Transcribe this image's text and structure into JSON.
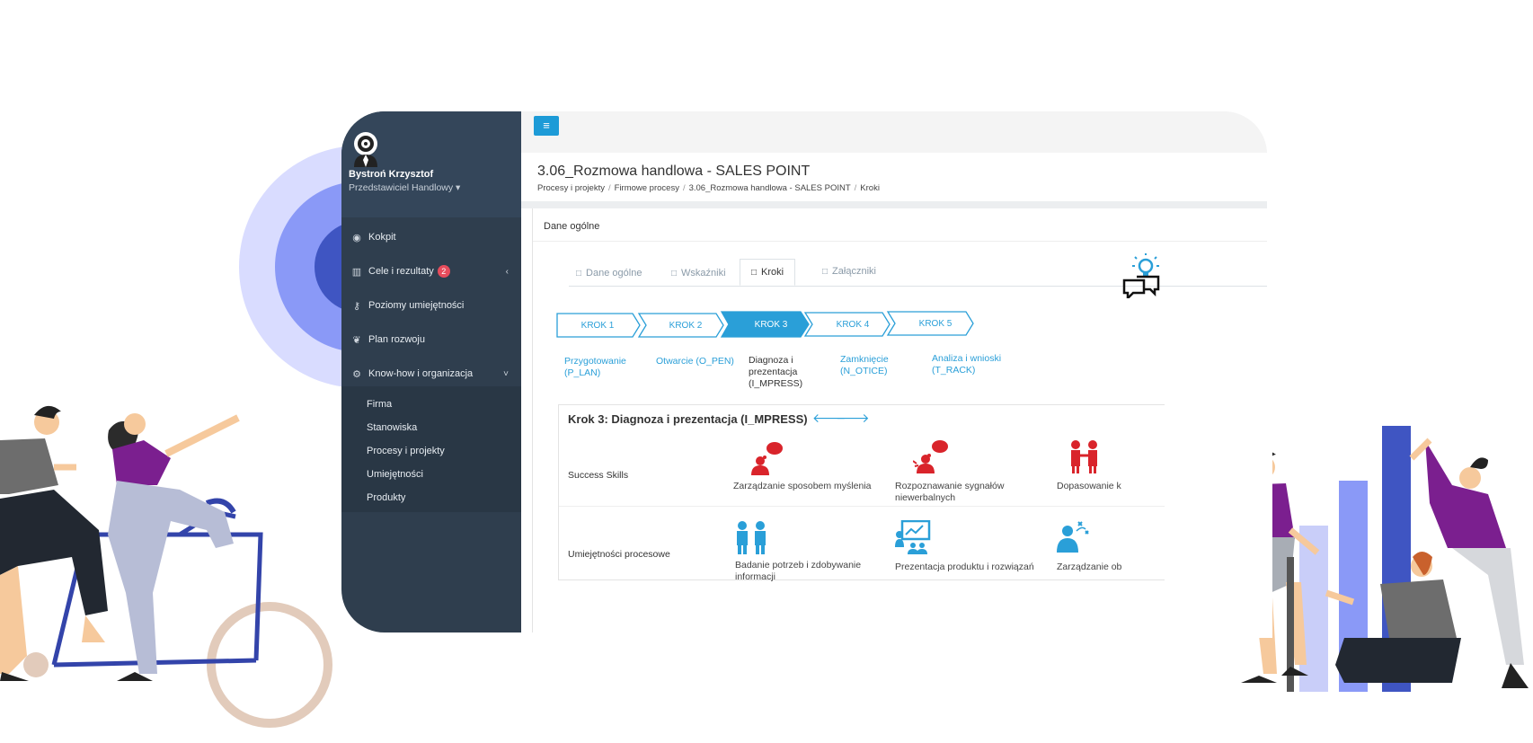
{
  "user": {
    "name": "Bystroń Krzysztof",
    "role": "Przedstawiciel Handlowy ▾"
  },
  "nav": [
    {
      "label": "Kokpit",
      "icon": "gauge-icon",
      "glyph": "◉"
    },
    {
      "label": "Cele i rezultaty",
      "icon": "chart-icon",
      "glyph": "▥",
      "badge": "2",
      "chev": "‹"
    },
    {
      "label": "Poziomy umiejętności",
      "icon": "key-icon",
      "glyph": "⚷"
    },
    {
      "label": "Plan rozwoju",
      "icon": "leaf-icon",
      "glyph": "❦"
    },
    {
      "label": "Know-how i organizacja",
      "icon": "cogs-icon",
      "glyph": "⚙",
      "chev": "˅"
    }
  ],
  "submenu": [
    "Firma",
    "Stanowiska",
    "Procesy i projekty",
    "Umiejętności",
    "Produkty"
  ],
  "menu_button": "≡",
  "page": {
    "title": "3.06_Rozmowa handlowa - SALES POINT",
    "breadcrumbs": [
      "Procesy i projekty",
      "Firmowe procesy",
      "3.06_Rozmowa handlowa - SALES POINT",
      "Kroki"
    ]
  },
  "panel_title": "Dane ogólne",
  "tabs": [
    {
      "label": "Dane ogólne",
      "active": false
    },
    {
      "label": "Wskaźniki",
      "active": false
    },
    {
      "label": "Kroki",
      "active": true
    },
    {
      "label": "Załączniki",
      "active": false
    }
  ],
  "tab_icon": "□",
  "steps": [
    {
      "label": "KROK 1",
      "name": [
        "Przygotowanie",
        "(P_LAN)"
      ]
    },
    {
      "label": "KROK 2",
      "name": [
        "Otwarcie (O_PEN)"
      ]
    },
    {
      "label": "KROK 3",
      "name": [
        "Diagnoza i",
        "prezentacja",
        "(I_MPRESS)"
      ],
      "current": true
    },
    {
      "label": "KROK 4",
      "name": [
        "Zamknięcie",
        "(N_OTICE)"
      ]
    },
    {
      "label": "KROK 5",
      "name": [
        "Analiza i wnioski",
        "(T_RACK)"
      ]
    }
  ],
  "krok": {
    "title": "Krok 3: Diagnoza i prezentacja (I_MPRESS)",
    "prev": "🡐",
    "next": "🡒",
    "rows": [
      {
        "label": "Success Skills",
        "skills": [
          [
            "Zarządzanie sposobem myślenia"
          ],
          [
            "Rozpoznawanie sygnałów",
            "niewerbalnych"
          ],
          [
            "Dopasowanie k"
          ]
        ]
      },
      {
        "label": "Umiejętności procesowe",
        "skills": [
          [
            "Badanie potrzeb i zdobywanie",
            "informacji"
          ],
          [
            "Prezentacja produktu i rozwiązań"
          ],
          [
            "Zarządzanie ob"
          ]
        ]
      }
    ]
  },
  "colors": {
    "accent": "#1d9bd7",
    "step_active": "#2a9fd8",
    "sidebar": "#2f3e4e",
    "badge": "#e74c5c",
    "skill_red": "#d9242b",
    "skill_blue": "#2a9fd8",
    "purple": "#7a1a8c"
  }
}
